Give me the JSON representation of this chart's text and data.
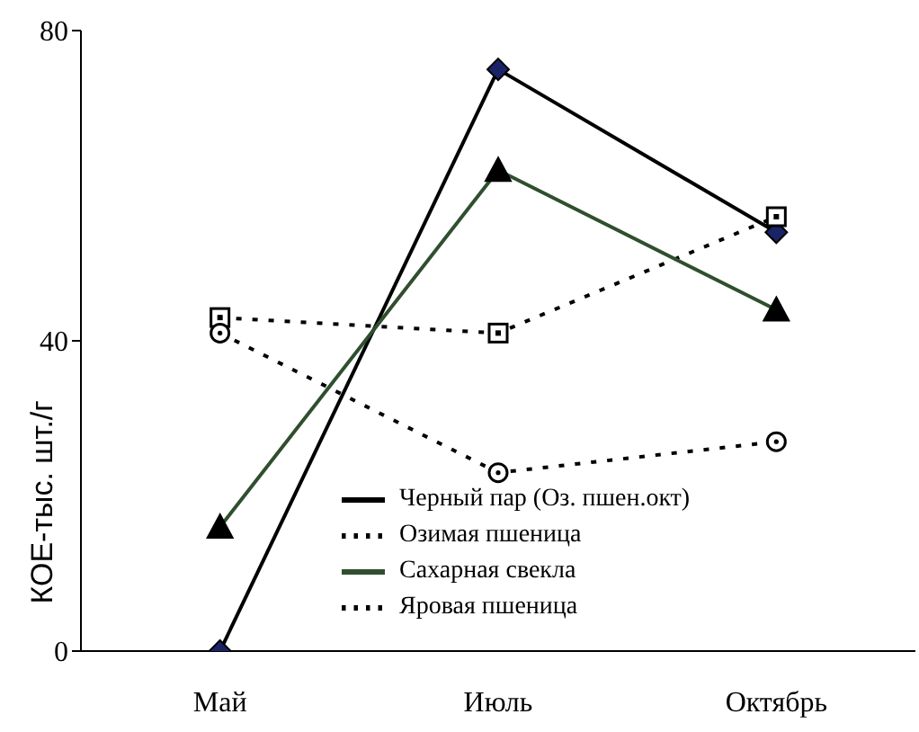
{
  "chart_data": {
    "type": "line",
    "categories": [
      "Май",
      "Июль",
      "Октябрь"
    ],
    "ylabel": "КОЕ-тыс. шт./г",
    "ylim": [
      0,
      80
    ],
    "yticks": [
      0,
      40,
      80
    ],
    "grid": false,
    "legend": "bottom right",
    "series": [
      {
        "name": "Черный пар (Оз. пшен.окт)",
        "color": "#000000",
        "marker": "diamond",
        "line_style": "solid",
        "values": [
          0,
          75,
          54
        ]
      },
      {
        "name": "Озимая пшеница",
        "color": "#000000",
        "marker": "square",
        "line_style": "dotted",
        "values": [
          43,
          41,
          56
        ]
      },
      {
        "name": "Сахарная свекла",
        "color": "#2f4f2f",
        "marker": "triangle",
        "line_style": "solid",
        "values": [
          16,
          62,
          44
        ]
      },
      {
        "name": "Яровая пшеница",
        "color": "#000000",
        "marker": "circle",
        "line_style": "dotted",
        "values": [
          41,
          23,
          27
        ]
      }
    ]
  }
}
